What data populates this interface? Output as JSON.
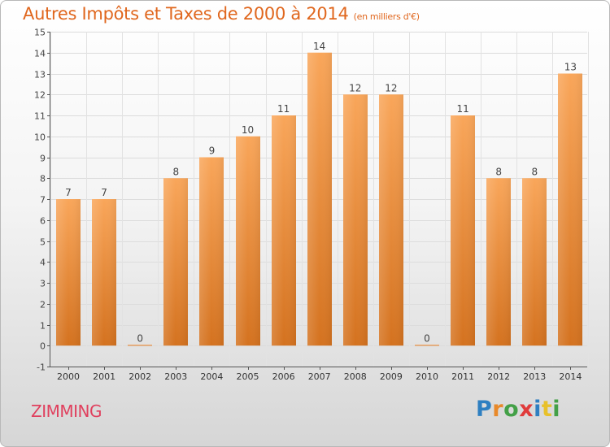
{
  "chart_data": {
    "type": "bar",
    "title": "Autres Impôts et Taxes de 2000 à 2014",
    "unit": "(en milliers d'€)",
    "categories": [
      "2000",
      "2001",
      "2002",
      "2003",
      "2004",
      "2005",
      "2006",
      "2007",
      "2008",
      "2009",
      "2010",
      "2011",
      "2012",
      "2013",
      "2014"
    ],
    "values": [
      7,
      7,
      0,
      8,
      9,
      10,
      11,
      14,
      12,
      12,
      0,
      11,
      8,
      8,
      13
    ],
    "yticks": [
      -1,
      0,
      1,
      2,
      3,
      4,
      5,
      6,
      7,
      8,
      9,
      10,
      11,
      12,
      13,
      14,
      15
    ],
    "ylim": [
      -1,
      15
    ],
    "grid": true,
    "bar_color_top": "#f9a65a",
    "bar_color_bottom": "#d4721f",
    "axis_color": "#555555"
  },
  "footer": {
    "commune": "ZIMMING",
    "brand_letters": [
      {
        "ch": "P",
        "color": "#2e7fc1"
      },
      {
        "ch": "r",
        "color": "#e8892a"
      },
      {
        "ch": "o",
        "color": "#43a047"
      },
      {
        "ch": "x",
        "color": "#e03b3b"
      },
      {
        "ch": "i",
        "color": "#2e7fc1"
      },
      {
        "ch": "t",
        "color": "#e8c12a"
      },
      {
        "ch": "i",
        "color": "#43a047"
      }
    ]
  }
}
